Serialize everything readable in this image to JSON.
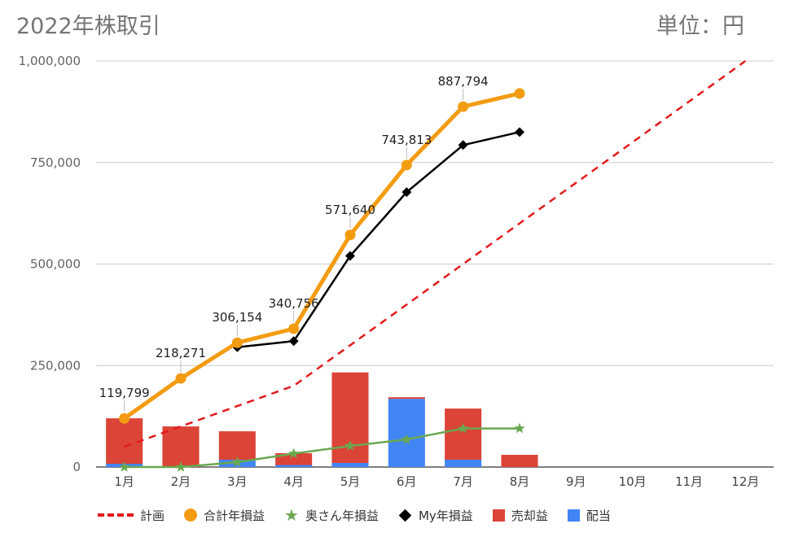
{
  "header": {
    "title": "2022年株取引",
    "unit": "単位：円"
  },
  "chart_data": {
    "type": "combo-bar-line",
    "title": "2022年株取引",
    "unit_label": "単位：円",
    "categories": [
      "1月",
      "2月",
      "3月",
      "4月",
      "5月",
      "6月",
      "7月",
      "8月",
      "9月",
      "10月",
      "11月",
      "12月"
    ],
    "y_axis": {
      "ylim": [
        0,
        1000000
      ],
      "ticks": [
        0,
        250000,
        500000,
        750000,
        1000000
      ],
      "tick_labels": [
        "0",
        "250,000",
        "500,000",
        "750,000",
        "1,000,000"
      ],
      "grid": true
    },
    "stacked_bars": [
      {
        "name": "配当",
        "color": "#4285f4",
        "values": [
          8000,
          0,
          18000,
          5000,
          10000,
          168000,
          18000,
          0,
          0,
          0,
          0,
          0
        ]
      },
      {
        "name": "売却益",
        "color": "#db4437",
        "values": [
          112000,
          100000,
          70000,
          29000,
          223000,
          4000,
          126000,
          30000,
          0,
          0,
          0,
          0
        ]
      }
    ],
    "lines": [
      {
        "name": "計画",
        "color": "#e31a1c",
        "style": "dashed",
        "marker": "none",
        "x_start": 0,
        "values": [
          50000,
          100000,
          150000,
          200000,
          300000,
          400000,
          500000,
          600000,
          700000,
          800000,
          900000,
          1000000
        ]
      },
      {
        "name": "合計年損益",
        "color": "#f39c12",
        "style": "solid",
        "marker": "circle",
        "x_start": 0,
        "values": [
          119799,
          218271,
          306154,
          340756,
          571640,
          743813,
          887794,
          920000
        ],
        "data_labels": [
          "119,799",
          "218,271",
          "306,154",
          "340,756",
          "571,640",
          "743,813",
          "887,794",
          ""
        ]
      },
      {
        "name": "奥さん年損益",
        "color": "#6aa84f",
        "style": "solid",
        "marker": "star",
        "x_start": 0,
        "values": [
          0,
          0,
          12000,
          33000,
          52000,
          68000,
          95000,
          95000
        ]
      },
      {
        "name": "My年損益",
        "color": "#000000",
        "style": "solid",
        "marker": "diamond",
        "x_start": 2,
        "values": [
          295000,
          310000,
          520000,
          677000,
          793000,
          825000
        ]
      }
    ],
    "legend": {
      "position": "bottom",
      "items": [
        {
          "label": "計画",
          "swatch": "dashed-line"
        },
        {
          "label": "合計年損益",
          "swatch": "circle"
        },
        {
          "label": "奥さん年損益",
          "swatch": "star"
        },
        {
          "label": "My年損益",
          "swatch": "diamond"
        },
        {
          "label": "売却益",
          "swatch": "square-red"
        },
        {
          "label": "配当",
          "swatch": "square-blue"
        }
      ]
    }
  }
}
